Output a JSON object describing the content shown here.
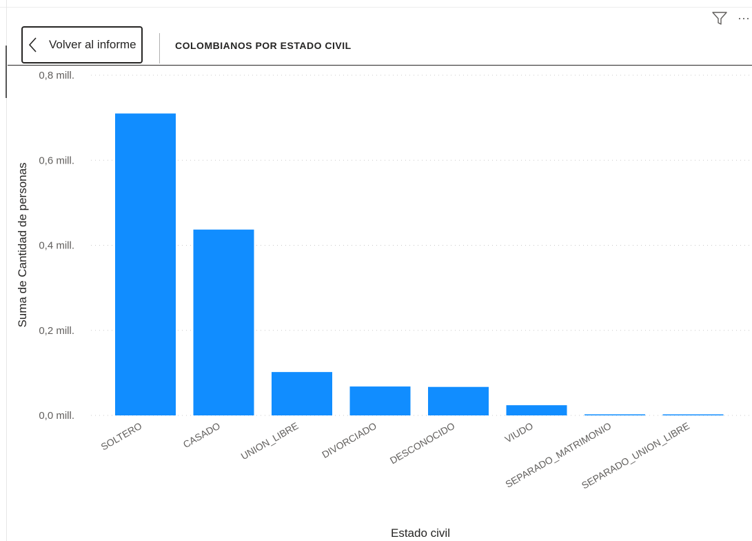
{
  "header": {
    "back_label": "Volver al informe",
    "title": "COLOMBIANOS POR ESTADO CIVIL"
  },
  "icons": {
    "back": "chevron-left-icon",
    "filter": "filter-icon",
    "more": "more-options-icon"
  },
  "colors": {
    "bar": "#118DFF",
    "grid": "#c8c8c8",
    "text": "#605e5c"
  },
  "chart_data": {
    "type": "bar",
    "title": "COLOMBIANOS POR ESTADO CIVIL",
    "xlabel": "Estado civil",
    "ylabel": "Suma de Cantidad de personas",
    "categories": [
      "SOLTERO",
      "CASADO",
      "UNION_LIBRE",
      "DIVORCIADO",
      "DESCONOCIDO",
      "VIUDO",
      "SEPARADO_MATRIMONIO",
      "SEPARADO_UNION_LIBRE"
    ],
    "values": [
      710000,
      437000,
      102000,
      68000,
      67000,
      24000,
      2500,
      2000
    ],
    "ylim": [
      0,
      800000
    ],
    "yticks": [
      0,
      200000,
      400000,
      600000,
      800000
    ],
    "ytick_labels": [
      "0,0 mill.",
      "0,2 mill.",
      "0,4 mill.",
      "0,6 mill.",
      "0,8 mill."
    ],
    "grid": true,
    "legend": false
  }
}
